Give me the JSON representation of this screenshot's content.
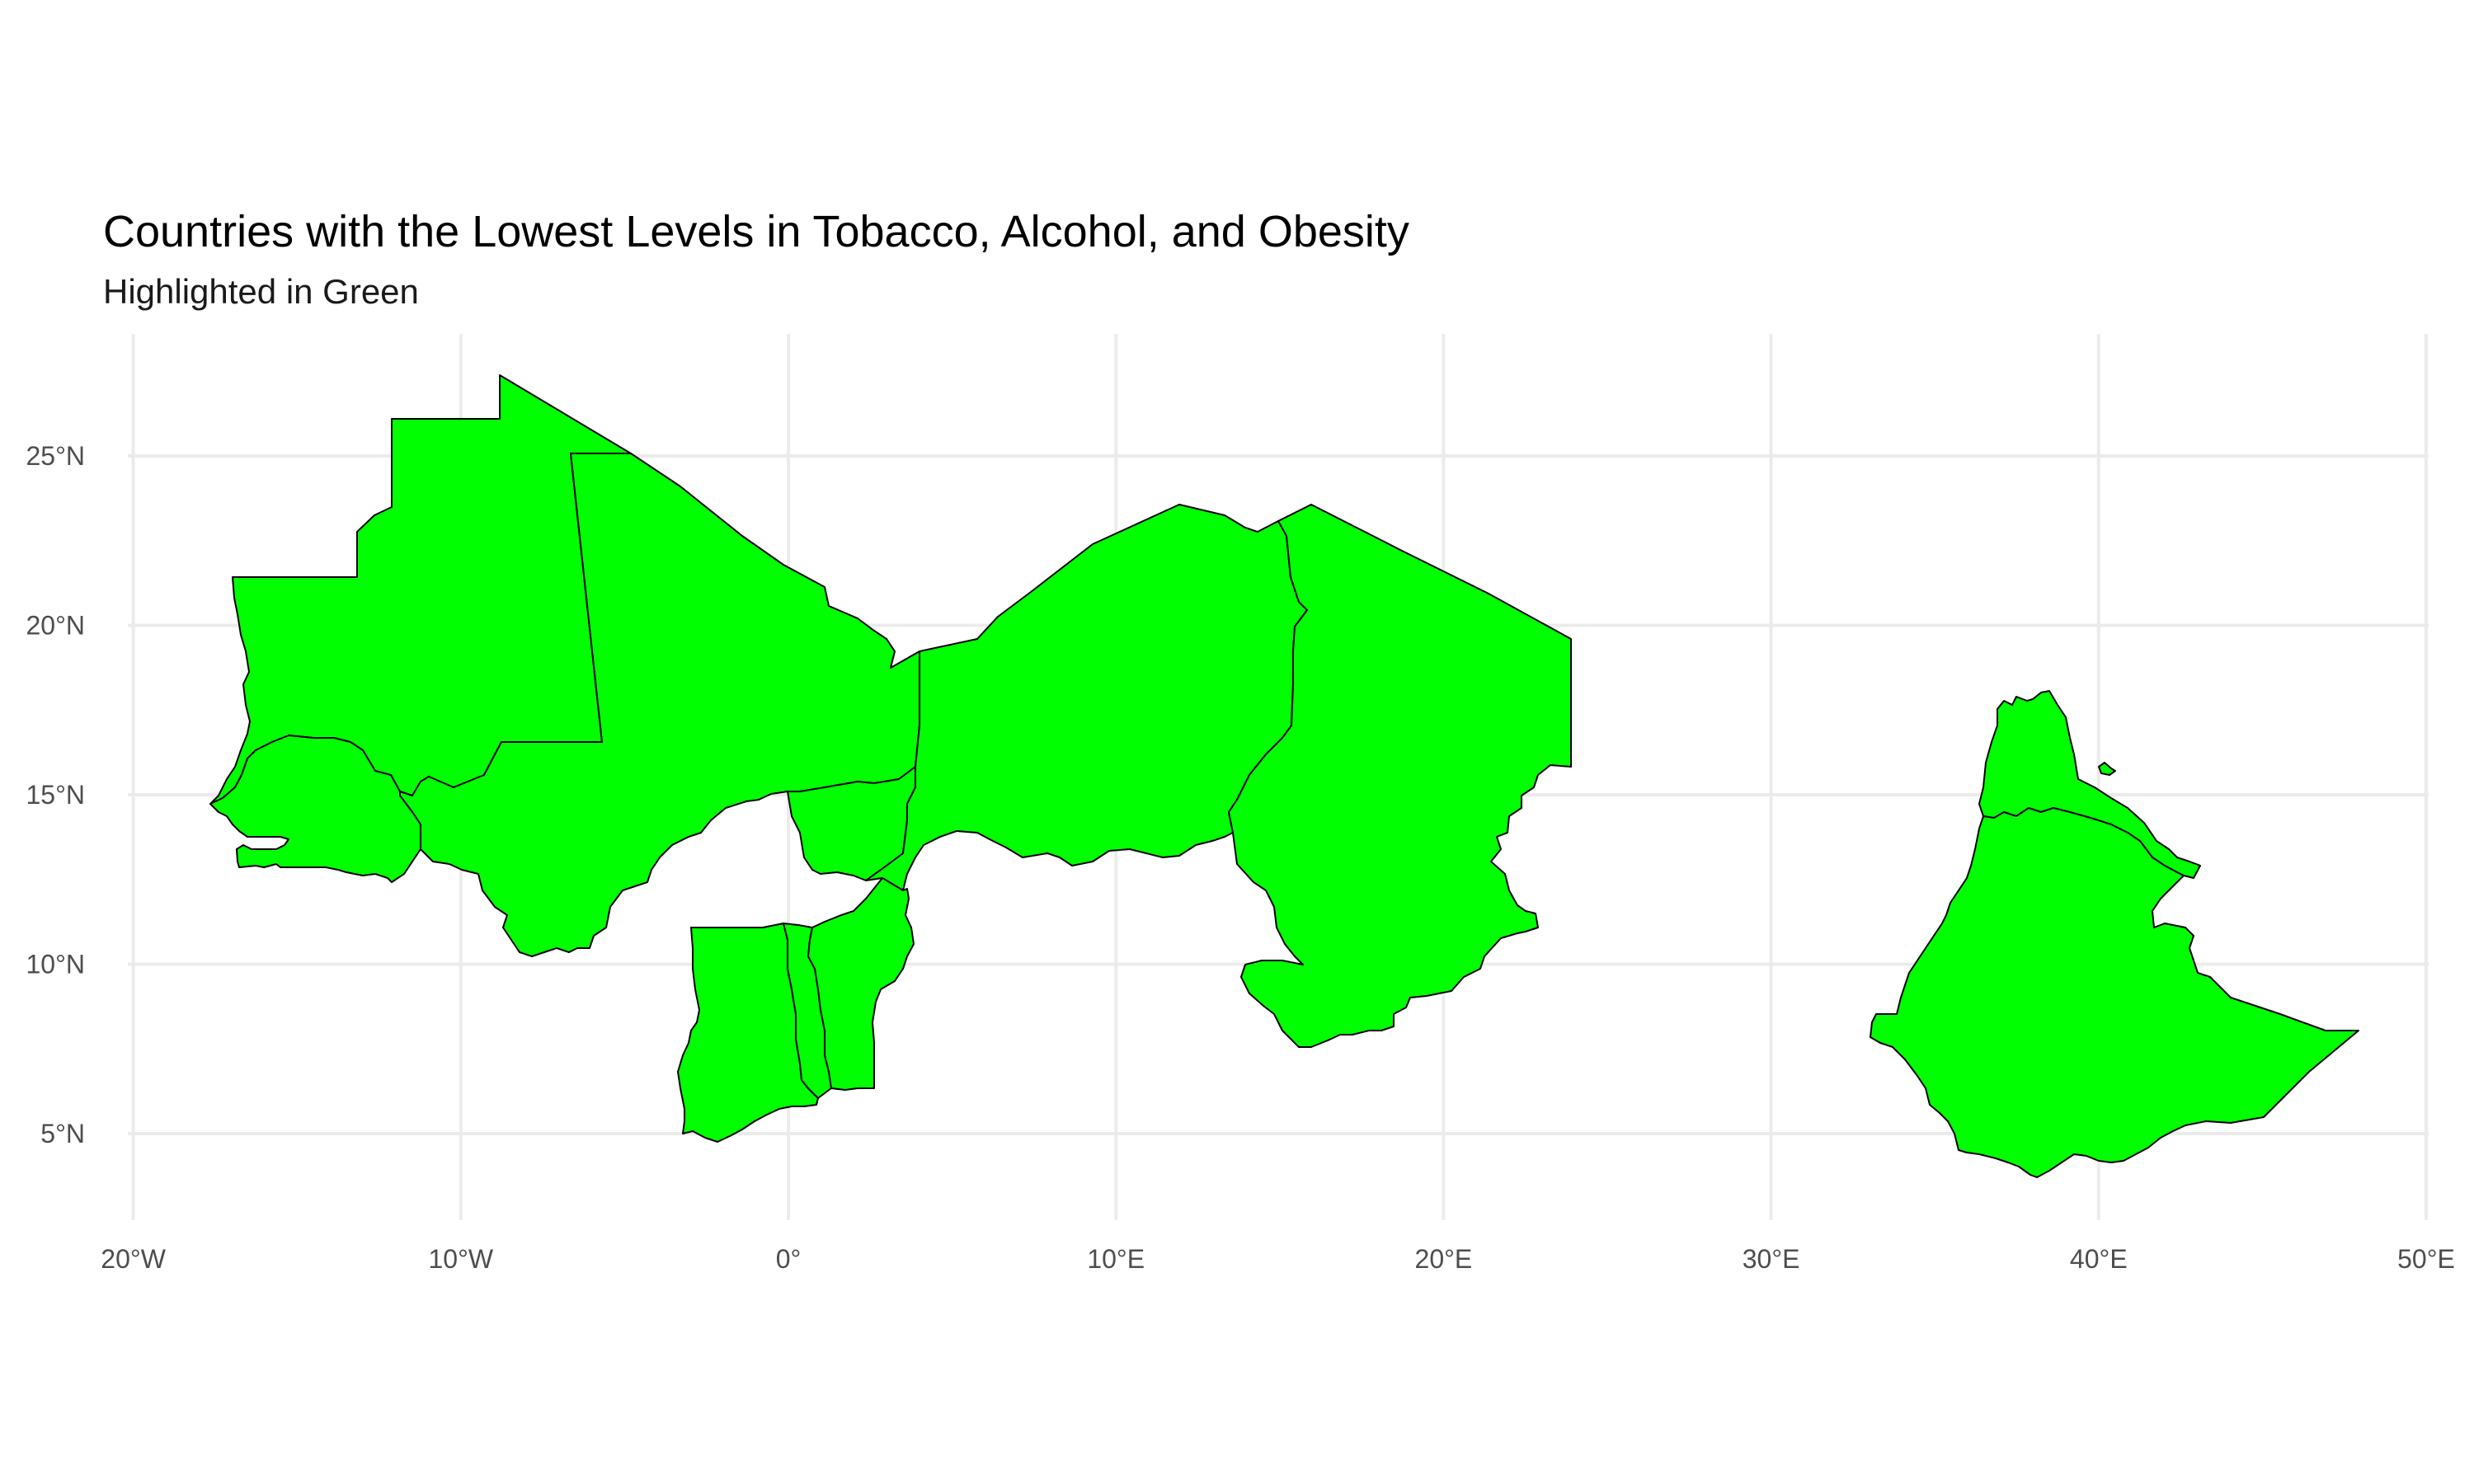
{
  "map": {
    "title": "Countries with the Lowest Levels in Tobacco, Alcohol, and Obesity",
    "subtitle": "Highlighted in Green",
    "highlight_color": "#00ff00",
    "border_color": "#000000",
    "background": "#ffffff",
    "grid": true,
    "lon_range": [
      -20.5,
      50.5
    ],
    "lat_range": [
      2.5,
      28.0
    ],
    "x_ticks": [
      {
        "value": -20,
        "label": "20°W"
      },
      {
        "value": -10,
        "label": "10°W"
      },
      {
        "value": 0,
        "label": "0°"
      },
      {
        "value": 10,
        "label": "10°E"
      },
      {
        "value": 20,
        "label": "20°E"
      },
      {
        "value": 30,
        "label": "30°E"
      },
      {
        "value": 40,
        "label": "40°E"
      },
      {
        "value": 50,
        "label": "50°E"
      }
    ],
    "y_ticks": [
      {
        "value": 5,
        "label": "5°N"
      },
      {
        "value": 10,
        "label": "10°N"
      },
      {
        "value": 15,
        "label": "15°N"
      },
      {
        "value": 20,
        "label": "20°N"
      },
      {
        "value": 25,
        "label": "25°N"
      }
    ]
  }
}
